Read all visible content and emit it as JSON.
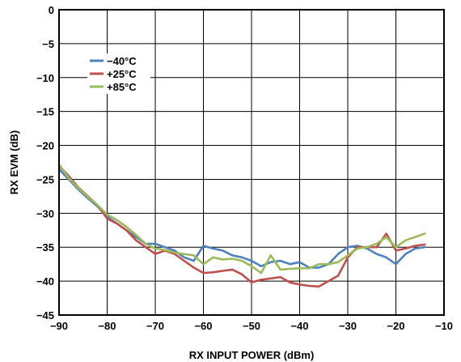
{
  "chart_data": {
    "type": "line",
    "title": "",
    "xlabel": "RX INPUT POWER (dBm)",
    "ylabel": "RX EVM (dB)",
    "xlim": [
      -90,
      -10
    ],
    "ylim": [
      -45,
      0
    ],
    "x_ticks": [
      -90,
      -80,
      -70,
      -60,
      -50,
      -40,
      -30,
      -20,
      -10
    ],
    "y_ticks": [
      0,
      -5,
      -10,
      -15,
      -20,
      -25,
      -30,
      -35,
      -40,
      -45
    ],
    "x_tick_labels": [
      "−90",
      "−80",
      "−70",
      "−60",
      "−50",
      "−40",
      "−30",
      "−20",
      "−10"
    ],
    "y_tick_labels": [
      "0",
      "−5",
      "−10",
      "−15",
      "−20",
      "−25",
      "−30",
      "−35",
      "−40",
      "−45"
    ],
    "grid": true,
    "legend_position": "top-left",
    "series": [
      {
        "name": "−40°C",
        "color": "#4f81bd",
        "x": [
          -90,
          -88,
          -86,
          -84,
          -82,
          -80,
          -78,
          -76,
          -74,
          -72,
          -70,
          -68,
          -66,
          -64,
          -62,
          -60,
          -58,
          -56,
          -54,
          -52,
          -50,
          -48,
          -46,
          -44,
          -42,
          -40,
          -38,
          -36,
          -34,
          -32,
          -30,
          -28,
          -26,
          -24,
          -22,
          -20,
          -18,
          -16,
          -14
        ],
        "y": [
          -23.5,
          -25,
          -26.5,
          -27.8,
          -29,
          -30.5,
          -31.5,
          -32.5,
          -33.5,
          -34.5,
          -34.5,
          -35,
          -35.5,
          -36.5,
          -37,
          -34.8,
          -35.2,
          -35.5,
          -36.2,
          -36.5,
          -37,
          -37.8,
          -37.2,
          -37,
          -37.5,
          -37.2,
          -38,
          -38,
          -37.5,
          -36,
          -35,
          -34.8,
          -35.2,
          -36,
          -36.5,
          -37.5,
          -36,
          -35.2,
          -35
        ]
      },
      {
        "name": "+25°C",
        "color": "#c0504d",
        "x": [
          -90,
          -88,
          -86,
          -84,
          -82,
          -80,
          -78,
          -76,
          -74,
          -72,
          -70,
          -68,
          -66,
          -64,
          -62,
          -60,
          -58,
          -56,
          -54,
          -52,
          -50,
          -48,
          -46,
          -44,
          -42,
          -40,
          -38,
          -36,
          -34,
          -32,
          -30,
          -28,
          -26,
          -24,
          -22,
          -20,
          -18,
          -16,
          -14
        ],
        "y": [
          -23,
          -24.5,
          -26.2,
          -27.5,
          -28.8,
          -30.8,
          -31.5,
          -32.5,
          -34,
          -35,
          -36,
          -35.5,
          -36,
          -37,
          -38,
          -38.8,
          -38.7,
          -38.5,
          -38.3,
          -39,
          -40.2,
          -39.8,
          -39.6,
          -39.4,
          -40.2,
          -40.5,
          -40.7,
          -40.8,
          -40,
          -39.2,
          -36.5,
          -35,
          -35,
          -35,
          -33,
          -35.5,
          -35.2,
          -34.8,
          -34.6
        ]
      },
      {
        "name": "+85°C",
        "color": "#9bbb59",
        "x": [
          -90,
          -88,
          -86,
          -84,
          -82,
          -80,
          -78,
          -76,
          -74,
          -72,
          -70,
          -68,
          -66,
          -64,
          -62,
          -60,
          -58,
          -56,
          -54,
          -52,
          -50,
          -48,
          -46,
          -44,
          -42,
          -40,
          -38,
          -36,
          -34,
          -32,
          -30,
          -28,
          -26,
          -24,
          -22,
          -20,
          -18,
          -16,
          -14
        ],
        "y": [
          -22.8,
          -24.8,
          -26.3,
          -27.6,
          -28.8,
          -30.2,
          -31,
          -32,
          -33.2,
          -34.5,
          -35.2,
          -35.4,
          -35.8,
          -36,
          -36.2,
          -37.5,
          -36.5,
          -36.8,
          -36.7,
          -37,
          -37.8,
          -38.8,
          -36.2,
          -38.3,
          -38.2,
          -38.1,
          -38.1,
          -37.5,
          -37.5,
          -37.2,
          -36.2,
          -35.2,
          -35,
          -34.5,
          -33.5,
          -35,
          -34,
          -33.5,
          -33
        ]
      }
    ]
  }
}
